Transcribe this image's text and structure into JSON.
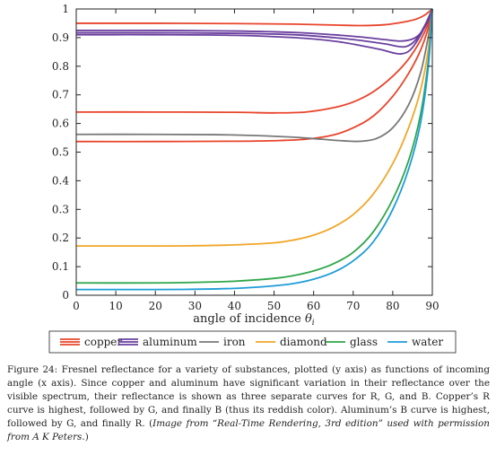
{
  "chart_data": {
    "type": "line",
    "title": "",
    "xlabel": "angle of incidence",
    "xlabel_symbol": "θ",
    "xlabel_subscript": "i",
    "ylabel": "",
    "xlim": [
      0,
      90
    ],
    "ylim": [
      0,
      1
    ],
    "x_ticks": [
      "0",
      "10",
      "20",
      "30",
      "40",
      "50",
      "60",
      "70",
      "80",
      "90"
    ],
    "y_ticks": [
      "0",
      "0.1",
      "0.2",
      "0.3",
      "0.4",
      "0.5",
      "0.6",
      "0.7",
      "0.8",
      "0.9",
      "1"
    ],
    "grid": false,
    "legend_position": "bottom",
    "legend": [
      {
        "label": "copper",
        "color": "#e8442b",
        "lines": 3
      },
      {
        "label": "aluminum",
        "color": "#6a3f9e",
        "lines": 3
      },
      {
        "label": "iron",
        "color": "#787878",
        "lines": 1
      },
      {
        "label": "diamond",
        "color": "#f0a628",
        "lines": 1
      },
      {
        "label": "glass",
        "color": "#2fa64a",
        "lines": 1
      },
      {
        "label": "water",
        "color": "#1e9cd8",
        "lines": 1
      }
    ],
    "series": [
      {
        "material": "copper",
        "channel": "R",
        "color": "#e8442b",
        "points": [
          [
            0,
            0.95
          ],
          [
            20,
            0.95
          ],
          [
            40,
            0.949
          ],
          [
            55,
            0.947
          ],
          [
            65,
            0.944
          ],
          [
            72,
            0.942
          ],
          [
            78,
            0.945
          ],
          [
            83,
            0.955
          ],
          [
            86,
            0.965
          ],
          [
            88,
            0.978
          ],
          [
            90,
            1.0
          ]
        ]
      },
      {
        "material": "copper",
        "channel": "G",
        "color": "#e8442b",
        "points": [
          [
            0,
            0.64
          ],
          [
            20,
            0.64
          ],
          [
            40,
            0.639
          ],
          [
            50,
            0.637
          ],
          [
            58,
            0.64
          ],
          [
            65,
            0.655
          ],
          [
            70,
            0.675
          ],
          [
            75,
            0.71
          ],
          [
            80,
            0.765
          ],
          [
            84,
            0.825
          ],
          [
            87,
            0.89
          ],
          [
            89,
            0.95
          ],
          [
            90,
            1.0
          ]
        ]
      },
      {
        "material": "copper",
        "channel": "B",
        "color": "#e8442b",
        "points": [
          [
            0,
            0.537
          ],
          [
            20,
            0.537
          ],
          [
            40,
            0.538
          ],
          [
            50,
            0.54
          ],
          [
            58,
            0.545
          ],
          [
            65,
            0.56
          ],
          [
            70,
            0.585
          ],
          [
            75,
            0.625
          ],
          [
            80,
            0.695
          ],
          [
            84,
            0.775
          ],
          [
            87,
            0.855
          ],
          [
            89,
            0.935
          ],
          [
            90,
            1.0
          ]
        ]
      },
      {
        "material": "aluminum",
        "channel": "B",
        "color": "#6a3f9e",
        "points": [
          [
            0,
            0.925
          ],
          [
            20,
            0.925
          ],
          [
            40,
            0.923
          ],
          [
            55,
            0.918
          ],
          [
            65,
            0.91
          ],
          [
            72,
            0.902
          ],
          [
            78,
            0.893
          ],
          [
            82,
            0.888
          ],
          [
            85,
            0.895
          ],
          [
            87,
            0.915
          ],
          [
            89,
            0.96
          ],
          [
            90,
            1.0
          ]
        ]
      },
      {
        "material": "aluminum",
        "channel": "G",
        "color": "#6a3f9e",
        "points": [
          [
            0,
            0.917
          ],
          [
            20,
            0.917
          ],
          [
            40,
            0.915
          ],
          [
            55,
            0.91
          ],
          [
            65,
            0.9
          ],
          [
            72,
            0.89
          ],
          [
            78,
            0.878
          ],
          [
            82,
            0.868
          ],
          [
            84,
            0.872
          ],
          [
            86,
            0.895
          ],
          [
            88,
            0.94
          ],
          [
            90,
            1.0
          ]
        ]
      },
      {
        "material": "aluminum",
        "channel": "R",
        "color": "#6a3f9e",
        "points": [
          [
            0,
            0.91
          ],
          [
            20,
            0.91
          ],
          [
            40,
            0.908
          ],
          [
            55,
            0.9
          ],
          [
            65,
            0.888
          ],
          [
            72,
            0.872
          ],
          [
            77,
            0.858
          ],
          [
            80,
            0.847
          ],
          [
            82,
            0.843
          ],
          [
            84,
            0.852
          ],
          [
            86,
            0.885
          ],
          [
            88,
            0.935
          ],
          [
            90,
            1.0
          ]
        ]
      },
      {
        "material": "iron",
        "channel": "",
        "color": "#787878",
        "points": [
          [
            0,
            0.562
          ],
          [
            20,
            0.562
          ],
          [
            35,
            0.561
          ],
          [
            45,
            0.558
          ],
          [
            55,
            0.552
          ],
          [
            62,
            0.545
          ],
          [
            68,
            0.539
          ],
          [
            72,
            0.538
          ],
          [
            76,
            0.548
          ],
          [
            80,
            0.585
          ],
          [
            84,
            0.665
          ],
          [
            87,
            0.775
          ],
          [
            89,
            0.905
          ],
          [
            90,
            1.0
          ]
        ]
      },
      {
        "material": "diamond",
        "channel": "",
        "color": "#f0a628",
        "points": [
          [
            0,
            0.172
          ],
          [
            20,
            0.172
          ],
          [
            30,
            0.173
          ],
          [
            40,
            0.176
          ],
          [
            50,
            0.183
          ],
          [
            55,
            0.193
          ],
          [
            60,
            0.21
          ],
          [
            65,
            0.238
          ],
          [
            70,
            0.282
          ],
          [
            75,
            0.352
          ],
          [
            80,
            0.46
          ],
          [
            84,
            0.585
          ],
          [
            87,
            0.715
          ],
          [
            89,
            0.86
          ],
          [
            90,
            1.0
          ]
        ]
      },
      {
        "material": "glass",
        "channel": "",
        "color": "#2fa64a",
        "points": [
          [
            0,
            0.043
          ],
          [
            20,
            0.043
          ],
          [
            30,
            0.045
          ],
          [
            40,
            0.049
          ],
          [
            50,
            0.059
          ],
          [
            55,
            0.069
          ],
          [
            60,
            0.085
          ],
          [
            65,
            0.11
          ],
          [
            70,
            0.15
          ],
          [
            75,
            0.22
          ],
          [
            80,
            0.335
          ],
          [
            84,
            0.47
          ],
          [
            87,
            0.63
          ],
          [
            89,
            0.82
          ],
          [
            90,
            1.0
          ]
        ]
      },
      {
        "material": "water",
        "channel": "",
        "color": "#1e9cd8",
        "points": [
          [
            0,
            0.02
          ],
          [
            20,
            0.02
          ],
          [
            30,
            0.021
          ],
          [
            40,
            0.024
          ],
          [
            50,
            0.033
          ],
          [
            55,
            0.041
          ],
          [
            60,
            0.056
          ],
          [
            65,
            0.08
          ],
          [
            70,
            0.12
          ],
          [
            75,
            0.185
          ],
          [
            80,
            0.3
          ],
          [
            84,
            0.44
          ],
          [
            87,
            0.6
          ],
          [
            89,
            0.8
          ],
          [
            90,
            1.0
          ]
        ]
      }
    ]
  },
  "caption": {
    "main": "Figure 24: Fresnel reflectance for a variety of substances, plotted (y axis) as functions of incoming angle (x axis). Since copper and aluminum have significant variation in their reflectance over the visible spectrum, their reflectance is shown as three separate curves for R, G, and B. Copper’s R curve is highest, followed by G, and finally B (thus its reddish color). Aluminum’s B curve is highest, followed by G, and finally R. (",
    "credit": "Image from “Real-Time Rendering, 3rd edition” used with permission from A K Peters.",
    "end": ")"
  }
}
